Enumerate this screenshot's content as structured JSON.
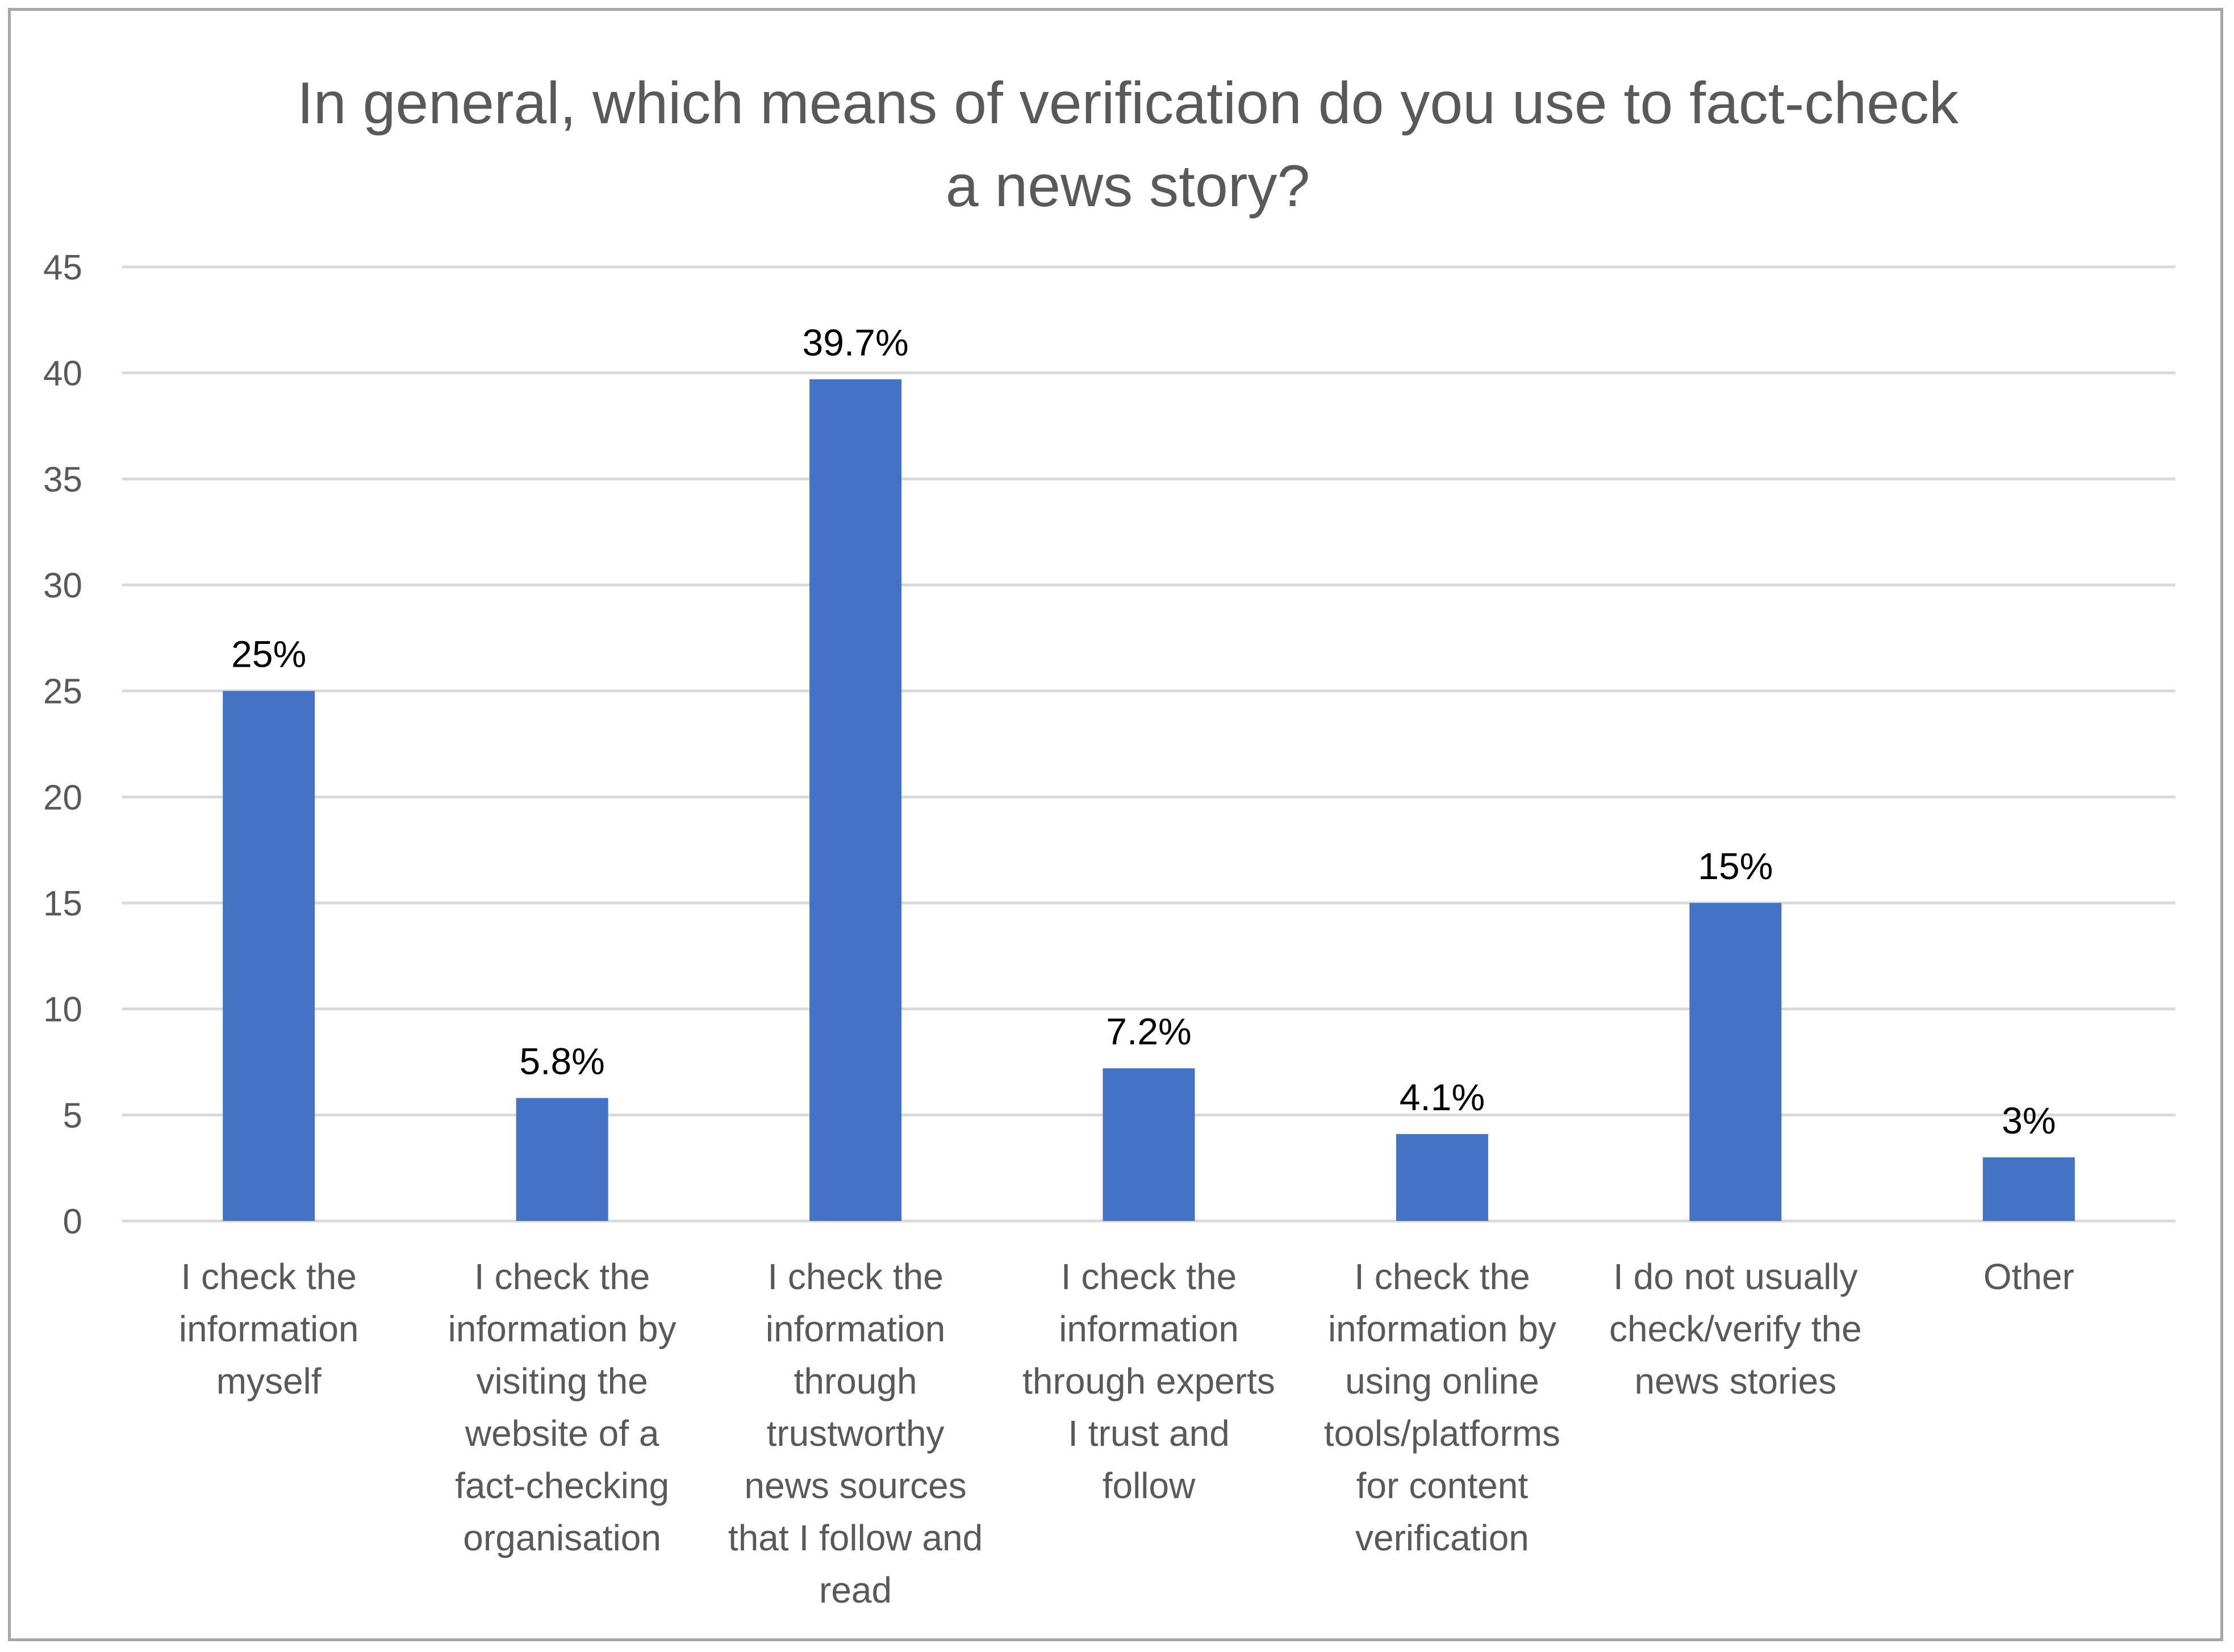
{
  "chart_data": {
    "type": "bar",
    "title_lines": [
      "In general, which means of verification do you use to fact-check",
      "a news story?"
    ],
    "categories": [
      [
        "I check the",
        "information",
        "myself"
      ],
      [
        "I check the",
        "information by",
        "visiting the",
        "website of a",
        "fact-checking",
        "organisation"
      ],
      [
        "I check the",
        "information",
        "through",
        "trustworthy",
        "news sources",
        "that I follow and",
        "read"
      ],
      [
        "I check the",
        "information",
        "through experts",
        "I trust and",
        "follow"
      ],
      [
        "I check the",
        "information by",
        "using online",
        "tools/platforms",
        "for content",
        "verification"
      ],
      [
        "I do not usually",
        "check/verify the",
        "news stories"
      ],
      [
        "Other"
      ]
    ],
    "values": [
      25,
      5.8,
      39.7,
      7.2,
      4.1,
      15,
      3
    ],
    "data_labels": [
      "25%",
      "5.8%",
      "39.7%",
      "7.2%",
      "4.1%",
      "15%",
      "3%"
    ],
    "ylim": [
      0,
      45
    ],
    "yticks": [
      0,
      5,
      10,
      15,
      20,
      25,
      30,
      35,
      40,
      45
    ],
    "grid": true,
    "bar_color": "#4472c4",
    "grid_color": "#d9d9d9",
    "axis_color": "#d9d9d9"
  }
}
